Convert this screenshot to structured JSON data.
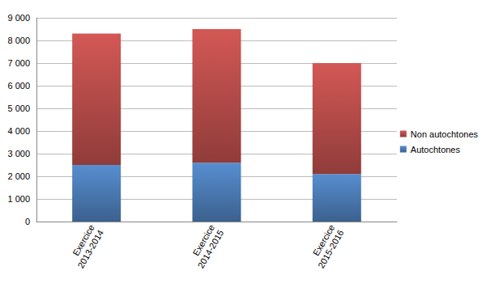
{
  "chart_data": {
    "type": "bar",
    "stacked": true,
    "categories": [
      "Exercice 2013-2014",
      "Exercice 2014-2015",
      "Exercice 2015-2016"
    ],
    "series": [
      {
        "name": "Autochtones",
        "color": "#4f81bd",
        "values": [
          2500,
          2600,
          2100
        ]
      },
      {
        "name": "Non autochtones",
        "color": "#c0504d",
        "values": [
          5800,
          5900,
          4900
        ]
      }
    ],
    "ylim": [
      0,
      9000
    ],
    "yticks": [
      0,
      {
        "value": 1000,
        "label": "1 000"
      },
      {
        "value": 2000,
        "label": "2 000"
      },
      {
        "value": 3000,
        "label": "3 000"
      },
      {
        "value": 4000,
        "label": "4 000"
      },
      {
        "value": 5000,
        "label": "5 000"
      },
      {
        "value": 6000,
        "label": "6 000"
      },
      {
        "value": 7000,
        "label": "7 000"
      },
      {
        "value": 8000,
        "label": "8 000"
      },
      {
        "value": 9000,
        "label": "9 000"
      }
    ],
    "grid": true,
    "legend": "right",
    "data_labels": false
  }
}
